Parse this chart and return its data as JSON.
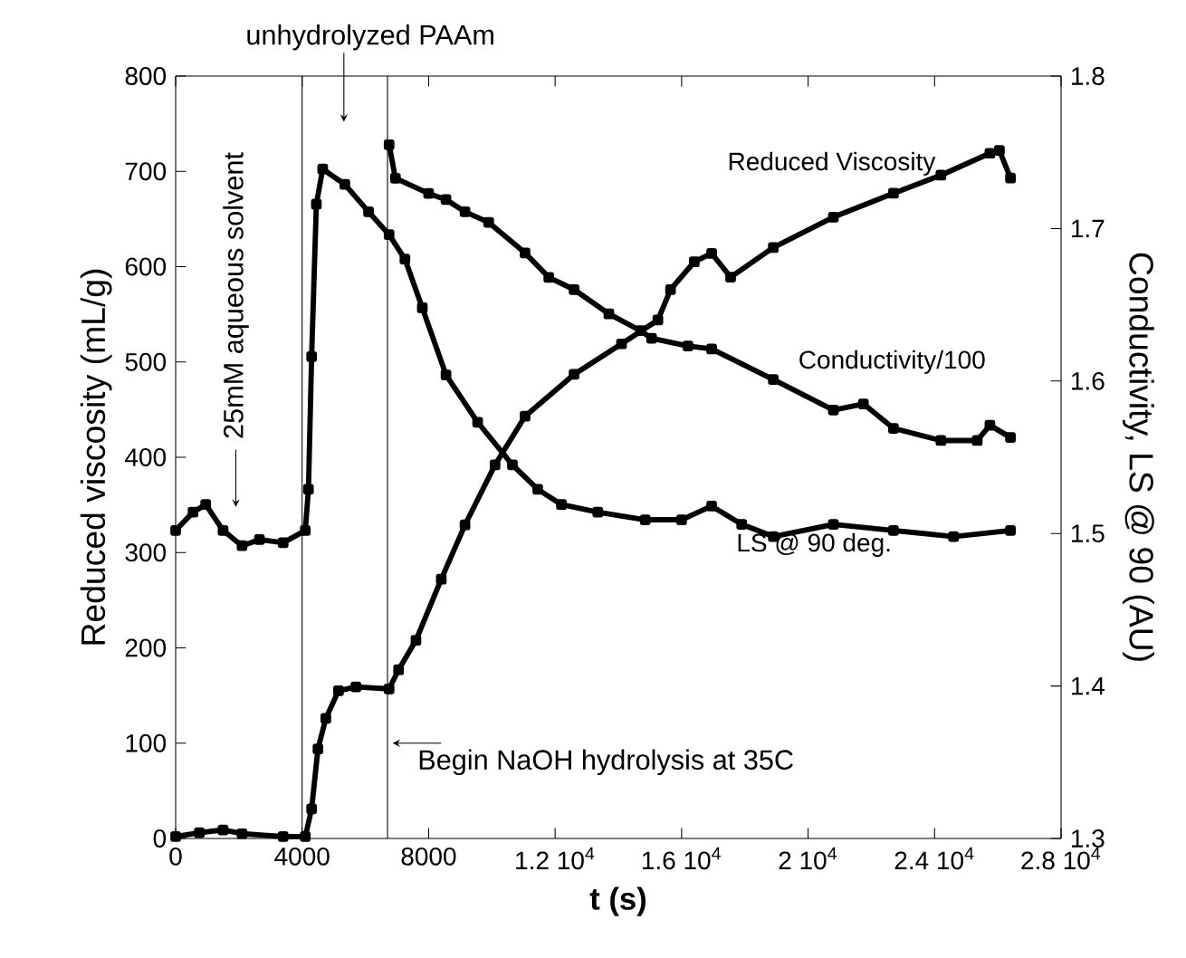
{
  "chart_data": {
    "type": "line",
    "xlabel": "t (s)",
    "ylabel": "Reduced viscosity (mL/g)",
    "y2label": "Conductivity, LS @ 90 (AU)",
    "xlim": [
      0,
      28000
    ],
    "xticks": [
      0,
      4000,
      8000,
      {
        "value": 12000,
        "label": "1.2 10$^{4}$"
      },
      {
        "value": 16000,
        "label": "1.6 10$^{4}$"
      },
      {
        "value": 20000,
        "label": "2 10$^{4}$"
      },
      {
        "value": 24000,
        "label": "2.4 10$^{4}$"
      },
      {
        "value": 28000,
        "label": "2.8 10$^{4}$"
      }
    ],
    "ylim": [
      0,
      800
    ],
    "yticks": [
      0,
      100,
      200,
      300,
      400,
      500,
      600,
      700,
      800
    ],
    "y2lim": [
      1.3,
      1.8
    ],
    "y2ticks": [
      1.3,
      1.4,
      1.5,
      1.6,
      1.7,
      1.8
    ],
    "marker": "square",
    "ref_lines": [
      {
        "axis": "x",
        "value": 4000
      },
      {
        "axis": "x",
        "value": 6700
      }
    ],
    "annotations": [
      "25mM aqueous solvent",
      "unhydrolyzed PAAm",
      "Begin NaOH hydrolysis at 35C"
    ],
    "series": [
      {
        "name": "Reduced Viscosity",
        "color": "#000000",
        "x": [
          0,
          750,
          1500,
          2100,
          3400,
          4100,
          4300,
          4500,
          4750,
          5150,
          5700,
          6750,
          7050,
          7600,
          8400,
          9150,
          10100,
          11050,
          12600,
          14100,
          15250,
          15650,
          16400,
          16950,
          17550,
          18900,
          20800,
          22700,
          24200,
          25750,
          26050,
          26400
        ],
        "values": [
          2,
          6,
          9,
          5,
          2,
          2,
          31,
          94,
          126,
          155,
          159,
          157,
          177,
          208,
          272,
          329,
          392,
          443,
          487,
          519,
          544,
          576,
          605,
          614,
          589,
          620,
          652,
          677,
          696,
          719,
          722,
          693
        ]
      },
      {
        "name": "Conductivity/100",
        "color": "#000000",
        "axis": "y2",
        "x": [
          6750,
          6950,
          8000,
          8550,
          9150,
          9900,
          11050,
          11800,
          12600,
          13700,
          14700,
          15050,
          16200,
          16950,
          18900,
          20800,
          21750,
          22700,
          24200,
          25350,
          25750,
          26400
        ],
        "values": [
          1.755,
          1.733,
          1.723,
          1.719,
          1.711,
          1.704,
          1.684,
          1.668,
          1.66,
          1.644,
          1.633,
          1.628,
          1.623,
          1.621,
          1.601,
          1.581,
          1.585,
          1.569,
          1.561,
          1.561,
          1.571,
          1.563
        ]
      },
      {
        "name": "LS @ 90 deg.",
        "color": "#000000",
        "axis": "y2",
        "x": [
          0,
          550,
          950,
          1500,
          2100,
          2650,
          3400,
          4100,
          4200,
          4300,
          4450,
          4650,
          5350,
          6100,
          6750,
          7250,
          7800,
          8550,
          9550,
          10650,
          11450,
          12200,
          13350,
          14850,
          16000,
          16950,
          17900,
          18900,
          20800,
          22700,
          24600,
          26400
        ],
        "values": [
          1.502,
          1.514,
          1.519,
          1.502,
          1.492,
          1.496,
          1.494,
          1.502,
          1.529,
          1.616,
          1.716,
          1.739,
          1.729,
          1.711,
          1.696,
          1.68,
          1.648,
          1.604,
          1.573,
          1.545,
          1.529,
          1.519,
          1.514,
          1.509,
          1.509,
          1.518,
          1.506,
          1.498,
          1.506,
          1.502,
          1.498,
          1.502
        ]
      }
    ]
  }
}
